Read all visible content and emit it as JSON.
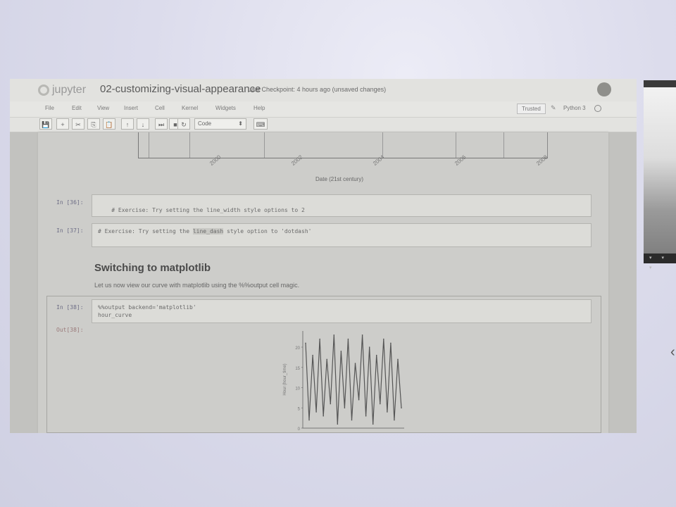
{
  "window": {
    "logo_text": "jupyter",
    "notebook_title": "02-customizing-visual-appearance",
    "checkpoint": "Last Checkpoint: 4 hours ago (unsaved changes)"
  },
  "menu": [
    "File",
    "Edit",
    "View",
    "Insert",
    "Cell",
    "Kernel",
    "Widgets",
    "Help"
  ],
  "status": {
    "trusted": "Trusted",
    "kernel": "Python 3"
  },
  "toolbar": {
    "buttons": [
      "💾",
      "+",
      "✂",
      "⎘",
      "📋",
      "↑",
      "↓",
      "⏭",
      "■",
      "↻"
    ],
    "cell_type": "Code",
    "keyboard_icon": "⌨"
  },
  "previous_plot": {
    "xlabel": "Date (21st century)",
    "ticks": [
      "2000",
      "2002",
      "2004",
      "2006",
      "2008"
    ]
  },
  "cells": [
    {
      "prompt": "In [36]:",
      "code": "# Exercise: Try setting the line_width style options to 2"
    },
    {
      "prompt": "In [37]:",
      "code_pre": "# Exercise: Try setting the ",
      "code_hl": "line_dash",
      "code_post": " style option to 'dotdash'"
    }
  ],
  "markdown": {
    "heading": "Switching to matplotlib",
    "text": "Let us now view our curve with matplotlib using the %%output cell magic."
  },
  "selected_cell": {
    "prompt": "In [38]:",
    "code_line1": "%%output backend='matplotlib'",
    "code_line2": "hour_curve",
    "out_prompt": "Out[38]:"
  },
  "chart_data": {
    "type": "line",
    "ylabel": "Hour (hour_time)",
    "ylim": [
      0,
      24
    ],
    "yticks": [
      "20",
      "15",
      "10",
      "5",
      "0"
    ],
    "series": [
      {
        "values": [
          21,
          2,
          18,
          4,
          22,
          3,
          17,
          6,
          23,
          1,
          19,
          5,
          22,
          2,
          16,
          7,
          23,
          3,
          20,
          1,
          18,
          6,
          22,
          4,
          21,
          2,
          17,
          5
        ]
      }
    ]
  },
  "side_panel": {
    "bar_text": "▾ ▾ ▾"
  }
}
